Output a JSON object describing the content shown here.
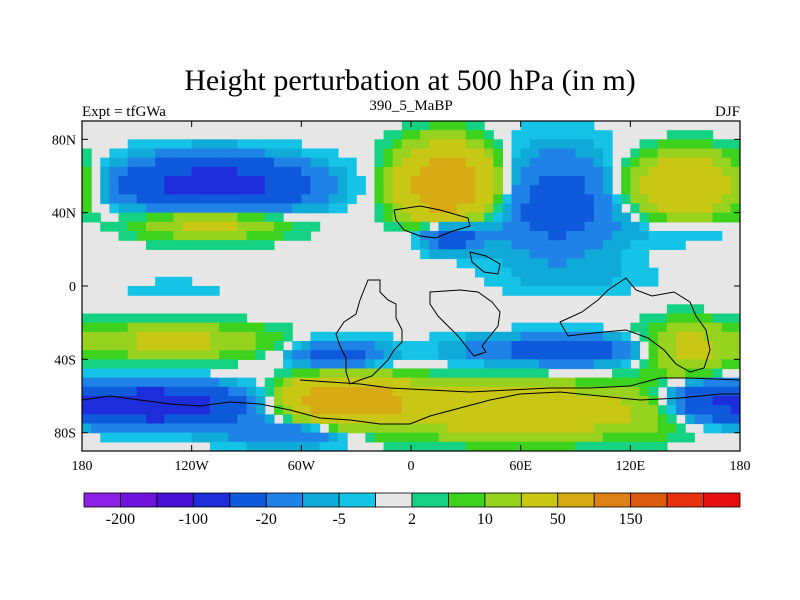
{
  "chart_data": {
    "type": "heatmap",
    "title": "Height perturbation at 500 hPa (in m)",
    "subtitle_left": "Expt = tfGWa",
    "subtitle_center": "390_5_MaBP",
    "subtitle_right": "DJF",
    "xlabel": "",
    "ylabel": "",
    "xlim": [
      -180,
      180
    ],
    "ylim": [
      -90,
      90
    ],
    "x_ticks": [
      {
        "value": -180,
        "label": "180"
      },
      {
        "value": -120,
        "label": "120W"
      },
      {
        "value": -60,
        "label": "60W"
      },
      {
        "value": 0,
        "label": "0"
      },
      {
        "value": 60,
        "label": "60E"
      },
      {
        "value": 120,
        "label": "120E"
      },
      {
        "value": 180,
        "label": "180"
      }
    ],
    "y_ticks": [
      {
        "value": 80,
        "label": "80N"
      },
      {
        "value": 40,
        "label": "40N"
      },
      {
        "value": 0,
        "label": "0"
      },
      {
        "value": -40,
        "label": "40S"
      },
      {
        "value": -80,
        "label": "80S"
      }
    ],
    "colorbar": {
      "colors": [
        "#8c1ee6",
        "#6e14dc",
        "#4b0fd7",
        "#1e2ddc",
        "#0f5adc",
        "#1e82e6",
        "#0faad7",
        "#14c3e6",
        "#e6e6e6",
        "#14d282",
        "#3cd21e",
        "#96d21e",
        "#c8c814",
        "#d7aa14",
        "#dc8214",
        "#dc5a0f",
        "#e6320f",
        "#e60f0f"
      ],
      "labels": [
        {
          "index": 1,
          "text": "-200"
        },
        {
          "index": 3,
          "text": "-100"
        },
        {
          "index": 5,
          "text": "-20"
        },
        {
          "index": 7,
          "text": "-5"
        },
        {
          "index": 9,
          "text": "2"
        },
        {
          "index": 11,
          "text": "10"
        },
        {
          "index": 13,
          "text": "50"
        },
        {
          "index": 15,
          "text": "150"
        }
      ]
    },
    "field": {
      "lon_range": [
        -180,
        180
      ],
      "lat_range": [
        -90,
        90
      ],
      "blobs": [
        {
          "lon": -108,
          "lat": 55,
          "rlon": 48,
          "rlat": 14,
          "amp": -70
        },
        {
          "lon": -110,
          "lat": 35,
          "rlon": 40,
          "rlat": 9,
          "amp": 30
        },
        {
          "lon": 20,
          "lat": 55,
          "rlon": 24,
          "rlat": 20,
          "amp": 90
        },
        {
          "lon": 22,
          "lat": 28,
          "rlon": 18,
          "rlat": 9,
          "amp": -40
        },
        {
          "lon": 80,
          "lat": 45,
          "rlon": 35,
          "rlat": 28,
          "amp": -30
        },
        {
          "lon": 150,
          "lat": 55,
          "rlon": 30,
          "rlat": 16,
          "amp": 50
        },
        {
          "lon": 150,
          "lat": 30,
          "rlon": 32,
          "rlat": 8,
          "amp": -6
        },
        {
          "lon": 90,
          "lat": 5,
          "rlon": 45,
          "rlat": 9,
          "amp": -5
        },
        {
          "lon": -130,
          "lat": -2,
          "rlon": 30,
          "rlat": 6,
          "amp": -4
        },
        {
          "lon": -130,
          "lat": -30,
          "rlon": 50,
          "rlat": 9,
          "amp": 25
        },
        {
          "lon": -40,
          "lat": -38,
          "rlon": 25,
          "rlat": 8,
          "amp": -30
        },
        {
          "lon": 85,
          "lat": -35,
          "rlon": 55,
          "rlat": 8,
          "amp": -30
        },
        {
          "lon": 150,
          "lat": -35,
          "rlon": 25,
          "rlat": 14,
          "amp": 30
        },
        {
          "lon": -140,
          "lat": -65,
          "rlon": 45,
          "rlat": 10,
          "amp": -90
        },
        {
          "lon": -65,
          "lat": -80,
          "rlon": 35,
          "rlat": 7,
          "amp": -25
        },
        {
          "lon": -35,
          "lat": -62,
          "rlon": 30,
          "rlat": 12,
          "amp": 90
        },
        {
          "lon": 60,
          "lat": -68,
          "rlon": 80,
          "rlat": 14,
          "amp": 40
        },
        {
          "lon": 165,
          "lat": -62,
          "rlon": 25,
          "rlat": 10,
          "amp": -40
        }
      ]
    }
  }
}
